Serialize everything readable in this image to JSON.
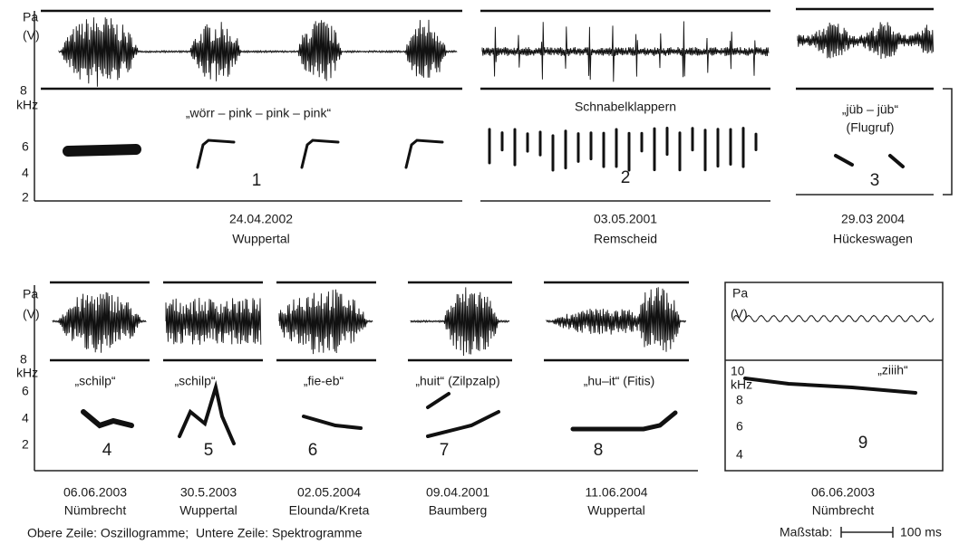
{
  "top_row": {
    "osc_unit": "Pa",
    "osc_unit_paren": "(V)",
    "freq_unit": "kHz",
    "freq_ticks": [
      "8",
      "6",
      "4",
      "2"
    ],
    "recordings": [
      {
        "call": "„wörr – pink – pink – pink“",
        "number": "1",
        "date": "24.04.2002",
        "place": "Wuppertal"
      },
      {
        "call": "Schnabelklappern",
        "number": "2",
        "date": "03.05.2001",
        "place": "Remscheid"
      },
      {
        "call": "„jüb – jüb“",
        "call_note": "(Flugruf)",
        "number": "3",
        "date": "29.03 2004",
        "place": "Hückeswagen"
      }
    ]
  },
  "bottom_row": {
    "osc_unit": "Pa",
    "osc_unit_paren": "(V)",
    "freq_unit": "kHz",
    "freq_ticks": [
      "8",
      "6",
      "4",
      "2"
    ],
    "recordings": [
      {
        "call": "„schilp“",
        "number": "4",
        "date": "06.06.2003",
        "place": "Nümbrecht"
      },
      {
        "call": "„schilp“",
        "number": "5",
        "date": "30.5.2003",
        "place": "Wuppertal"
      },
      {
        "call": "„fie-eb“",
        "number": "6",
        "date": "02.05.2004",
        "place": "Elounda/Kreta"
      },
      {
        "call": "„huit“ (Zilpzalp)",
        "number": "7",
        "date": "09.04.2001",
        "place": "Baumberg"
      },
      {
        "call": "„hu–it“ (Fitis)",
        "number": "8",
        "date": "11.06.2004",
        "place": "Wuppertal"
      }
    ],
    "panel_9": {
      "osc_unit": "Pa",
      "osc_unit_paren": "(V)",
      "freq_unit": "kHz",
      "freq_ticks": [
        "10",
        "8",
        "6",
        "4"
      ],
      "call": "„ziiih“",
      "number": "9",
      "date": "06.06.2003",
      "place": "Nümbrecht"
    }
  },
  "caption": "Obere Zeile: Oszillogramme;  Untere Zeile: Spektrogramme",
  "scale": {
    "label": "Maßstab:",
    "length": "100 ms"
  }
}
